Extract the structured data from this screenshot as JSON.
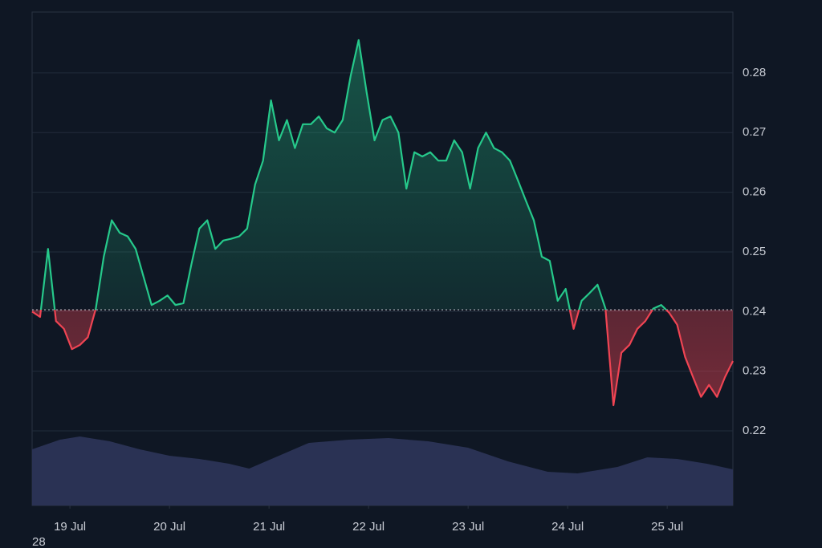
{
  "chart_data": {
    "type": "baseline-area",
    "caption": "28",
    "x": [
      18.62,
      18.7,
      18.78,
      18.86,
      18.94,
      19.02,
      19.1,
      19.18,
      19.26,
      19.34,
      19.42,
      19.5,
      19.58,
      19.66,
      19.74,
      19.82,
      19.9,
      19.98,
      20.06,
      20.14,
      20.22,
      20.3,
      20.38,
      20.46,
      20.54,
      20.62,
      20.7,
      20.78,
      20.86,
      20.94,
      21.02,
      21.1,
      21.18,
      21.26,
      21.34,
      21.42,
      21.5,
      21.58,
      21.66,
      21.74,
      21.82,
      21.9,
      21.98,
      22.06,
      22.14,
      22.22,
      22.3,
      22.38,
      22.46,
      22.54,
      22.62,
      22.7,
      22.78,
      22.86,
      22.94,
      23.02,
      23.1,
      23.18,
      23.26,
      23.34,
      23.42,
      23.5,
      23.58,
      23.66,
      23.74,
      23.82,
      23.9,
      23.98,
      24.06,
      24.14,
      24.22,
      24.3,
      24.38,
      24.46,
      24.54,
      24.62,
      24.7,
      24.78,
      24.86,
      24.94,
      25.02,
      25.1,
      25.18,
      25.26,
      25.34,
      25.42,
      25.5,
      25.58,
      25.66
    ],
    "series": [
      {
        "values": [
          0.24,
          0.2391,
          0.2505,
          0.2384,
          0.2371,
          0.2337,
          0.2344,
          0.2357,
          0.2405,
          0.2492,
          0.2553,
          0.2532,
          0.2526,
          0.2505,
          0.2458,
          0.2411,
          0.2418,
          0.2427,
          0.2411,
          0.2414,
          0.2479,
          0.2539,
          0.2553,
          0.2505,
          0.2519,
          0.2522,
          0.2526,
          0.2539,
          0.2613,
          0.2653,
          0.2754,
          0.2687,
          0.2721,
          0.2674,
          0.2714,
          0.2714,
          0.2727,
          0.2707,
          0.27,
          0.2721,
          0.2795,
          0.2855,
          0.2768,
          0.2687,
          0.2721,
          0.2727,
          0.27,
          0.2606,
          0.2667,
          0.266,
          0.2667,
          0.2653,
          0.2653,
          0.2687,
          0.2667,
          0.2606,
          0.2674,
          0.27,
          0.2674,
          0.2667,
          0.2653,
          0.262,
          0.2586,
          0.2553,
          0.2492,
          0.2485,
          0.2418,
          0.2438,
          0.2371,
          0.2418,
          0.2431,
          0.2445,
          0.2405,
          0.2243,
          0.2331,
          0.2344,
          0.2371,
          0.2384,
          0.2405,
          0.2411,
          0.2398,
          0.2378,
          0.2324,
          0.229,
          0.2257,
          0.2277,
          0.2257,
          0.229,
          0.2317
        ],
        "up_color": "#26c98b",
        "down_color": "#ef4453"
      }
    ],
    "baseline": 0.2403,
    "volume": {
      "color": "#2a3254",
      "x": [
        18.62,
        18.9,
        19.1,
        19.4,
        19.7,
        20.0,
        20.3,
        20.6,
        20.8,
        21.1,
        21.4,
        21.8,
        22.2,
        22.6,
        23.0,
        23.4,
        23.8,
        24.1,
        24.5,
        24.8,
        25.1,
        25.4,
        25.66
      ],
      "values": [
        70,
        82,
        86,
        80,
        70,
        62,
        58,
        52,
        46,
        62,
        78,
        82,
        84,
        80,
        72,
        55,
        42,
        40,
        48,
        60,
        58,
        52,
        45
      ],
      "vlim": [
        0,
        100
      ]
    },
    "xlim": [
      18.62,
      25.66
    ],
    "xticks": [
      {
        "value": 19,
        "label": "19 Jul"
      },
      {
        "value": 20,
        "label": "20 Jul"
      },
      {
        "value": 21,
        "label": "21 Jul"
      },
      {
        "value": 22,
        "label": "22 Jul"
      },
      {
        "value": 23,
        "label": "23 Jul"
      },
      {
        "value": 24,
        "label": "24 Jul"
      },
      {
        "value": 25,
        "label": "25 Jul"
      }
    ],
    "ylim": [
      0.2075,
      0.2902
    ],
    "yticks": [
      0.22,
      0.23,
      0.24,
      0.25,
      0.26,
      0.27,
      0.28
    ],
    "grid": true
  }
}
